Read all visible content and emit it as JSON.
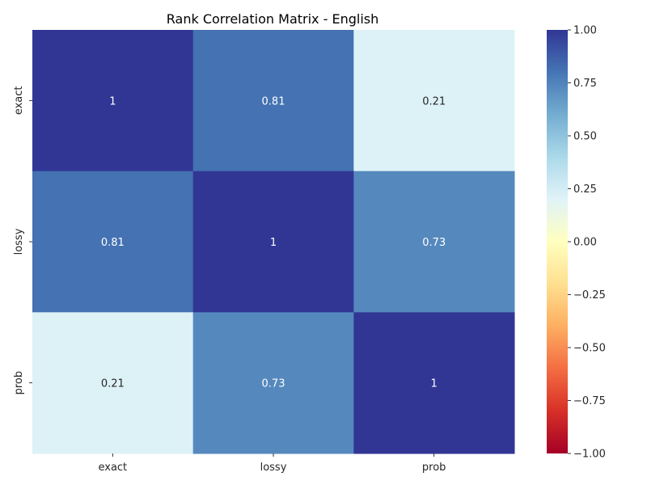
{
  "chart_data": {
    "type": "heatmap",
    "title": "Rank Correlation Matrix - English",
    "x_categories": [
      "exact",
      "lossy",
      "prob"
    ],
    "y_categories": [
      "exact",
      "lossy",
      "prob"
    ],
    "values": [
      [
        1,
        0.81,
        0.21
      ],
      [
        0.81,
        1,
        0.73
      ],
      [
        0.21,
        0.73,
        1
      ]
    ],
    "value_labels": [
      [
        "1",
        "0.81",
        "0.21"
      ],
      [
        "0.81",
        "1",
        "0.73"
      ],
      [
        "0.21",
        "0.73",
        "1"
      ]
    ],
    "colorbar": {
      "colormap": "RdYlBu",
      "vmin": -1.0,
      "vmax": 1.0,
      "tick_values": [
        1.0,
        0.75,
        0.5,
        0.25,
        0.0,
        -0.25,
        -0.5,
        -0.75,
        -1.0
      ],
      "tick_labels": [
        "1.00",
        "0.75",
        "0.50",
        "0.25",
        "0.00",
        "−0.25",
        "−0.50",
        "−0.75",
        "−1.00"
      ]
    }
  }
}
